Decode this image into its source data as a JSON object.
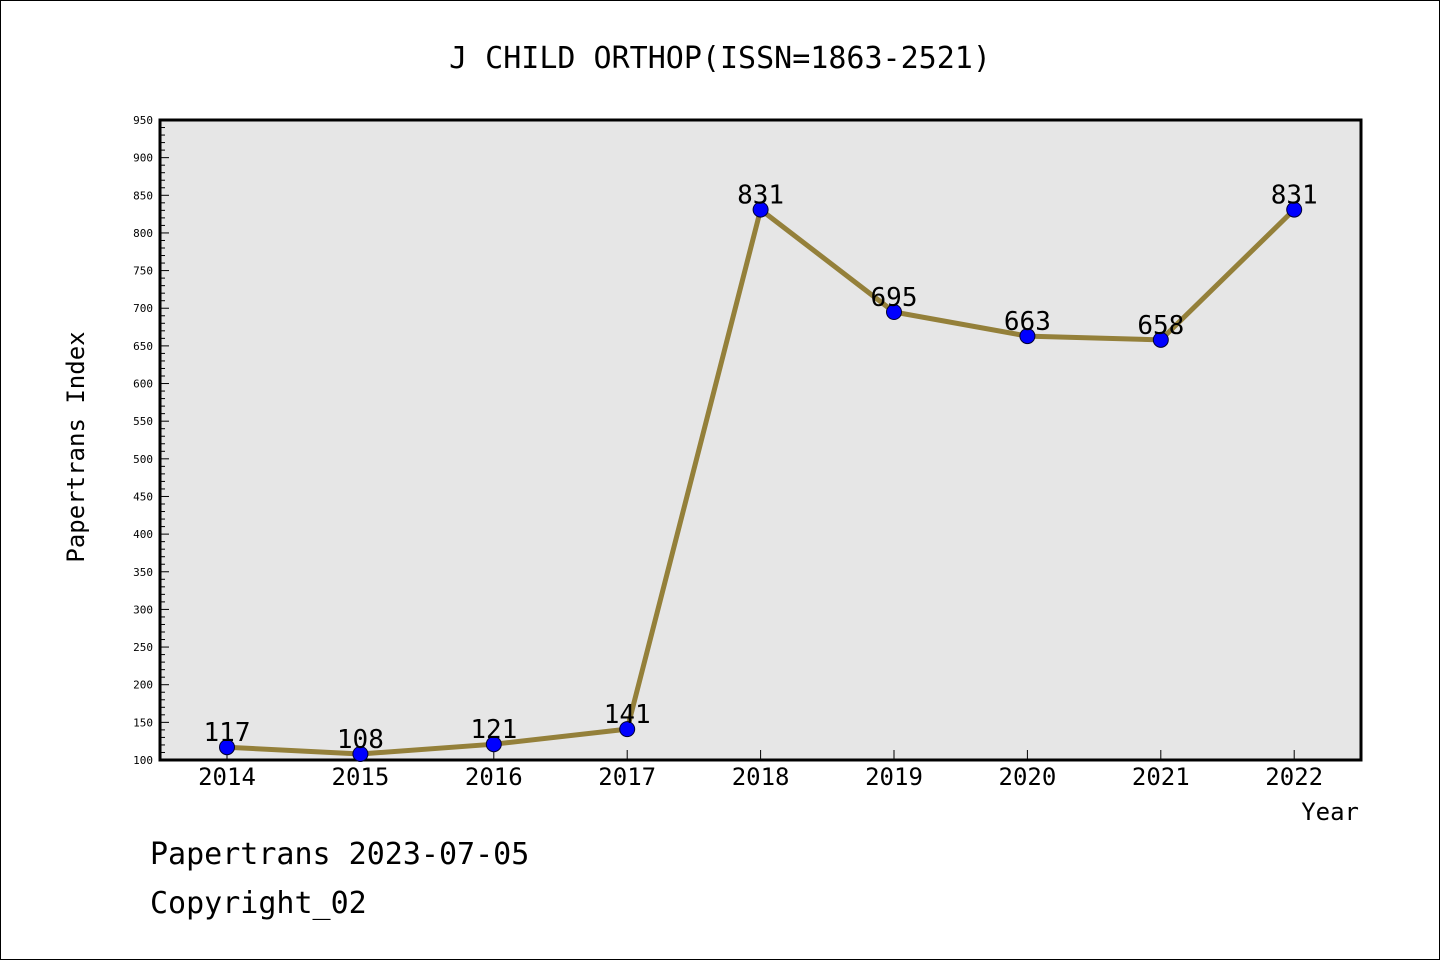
{
  "chart_data": {
    "type": "line",
    "title": "J CHILD ORTHOP(ISSN=1863-2521)",
    "xlabel": "Year",
    "ylabel": "Papertrans Index",
    "categories": [
      "2014",
      "2015",
      "2016",
      "2017",
      "2018",
      "2019",
      "2020",
      "2021",
      "2022"
    ],
    "series": [
      {
        "values": [
          117,
          108,
          121,
          141,
          831,
          695,
          663,
          658,
          831
        ]
      }
    ],
    "data_labels": [
      "117",
      "108",
      "121",
      "141",
      "831",
      "695",
      "663",
      "658",
      "831"
    ],
    "ylim": [
      100,
      950
    ],
    "yticks": [
      "100",
      "150",
      "200",
      "250",
      "300",
      "350",
      "400",
      "450",
      "500",
      "550",
      "600",
      "650",
      "700",
      "750",
      "800",
      "850",
      "900",
      "950"
    ],
    "grid": false,
    "legend": "none",
    "colors": {
      "line": "#94803a",
      "marker": "#0000ff",
      "plot_background": "#e6e6e6",
      "axis": "#000000"
    }
  },
  "footer": {
    "line1": "Papertrans 2023-07-05",
    "line2": "Copyright_02"
  }
}
